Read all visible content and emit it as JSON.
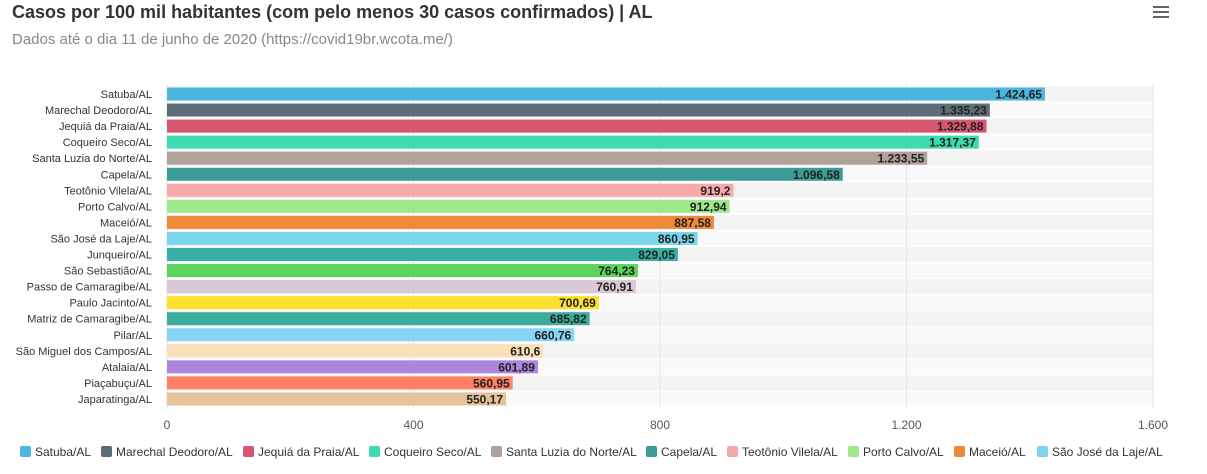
{
  "header": {
    "title": "Casos por 100 mil habitantes (com pelo menos 30 casos confirmados) | AL",
    "subtitle": "Dados até o dia 11 de junho de 2020 (https://covid19br.wcota.me/)",
    "menu_icon": "hamburger-menu-icon"
  },
  "chart_data": {
    "type": "bar",
    "orientation": "horizontal",
    "categories": [
      "Satuba/AL",
      "Marechal Deodoro/AL",
      "Jequiá da Praia/AL",
      "Coqueiro Seco/AL",
      "Santa Luzia do Norte/AL",
      "Capela/AL",
      "Teotônio Vilela/AL",
      "Porto Calvo/AL",
      "Maceió/AL",
      "São José da Laje/AL",
      "Junqueiro/AL",
      "São Sebastião/AL",
      "Passo de Camaragibe/AL",
      "Paulo Jacinto/AL",
      "Matriz de Camaragibe/AL",
      "Pilar/AL",
      "São Miguel dos Campos/AL",
      "Atalaia/AL",
      "Piaçabuçu/AL",
      "Japaratinga/AL"
    ],
    "values": [
      1424.65,
      1335.23,
      1329.88,
      1317.37,
      1233.55,
      1096.58,
      919.2,
      912.94,
      887.58,
      860.95,
      829.05,
      764.23,
      760.91,
      700.69,
      685.82,
      660.76,
      610.6,
      601.89,
      560.95,
      550.17
    ],
    "value_labels": [
      "1.424,65",
      "1.335,23",
      "1.329,88",
      "1.317,37",
      "1.233,55",
      "1.096,58",
      "919,2",
      "912,94",
      "887,58",
      "860,95",
      "829,05",
      "764,23",
      "760,91",
      "700,69",
      "685,82",
      "660,76",
      "610,6",
      "601,89",
      "560,95",
      "550,17"
    ],
    "colors": [
      "#4bb6e0",
      "#5b6e77",
      "#d9566f",
      "#3ddbb0",
      "#afa29b",
      "#3c9a97",
      "#f8aaaa",
      "#9ee88a",
      "#f08a3a",
      "#7ad6ec",
      "#36b0a6",
      "#5bd45a",
      "#d9c8d8",
      "#fde02e",
      "#3aad9b",
      "#86d5f5",
      "#fae0b8",
      "#ad85dc",
      "#ff8065",
      "#e6c49a"
    ],
    "xlim": [
      0,
      1600
    ],
    "xticks": [
      0,
      400,
      800,
      1200,
      1600
    ],
    "xtick_labels": [
      "0",
      "400",
      "800",
      "1.200",
      "1.600"
    ],
    "grid": true,
    "legend_position": "bottom",
    "legend": [
      "Satuba/AL",
      "Marechal Deodoro/AL",
      "Jequiá da Praia/AL",
      "Coqueiro Seco/AL",
      "Santa Luzia do Norte/AL",
      "Capela/AL",
      "Teotônio Vilela/AL",
      "Porto Calvo/AL",
      "Maceió/AL",
      "São José da Laje/AL"
    ]
  }
}
